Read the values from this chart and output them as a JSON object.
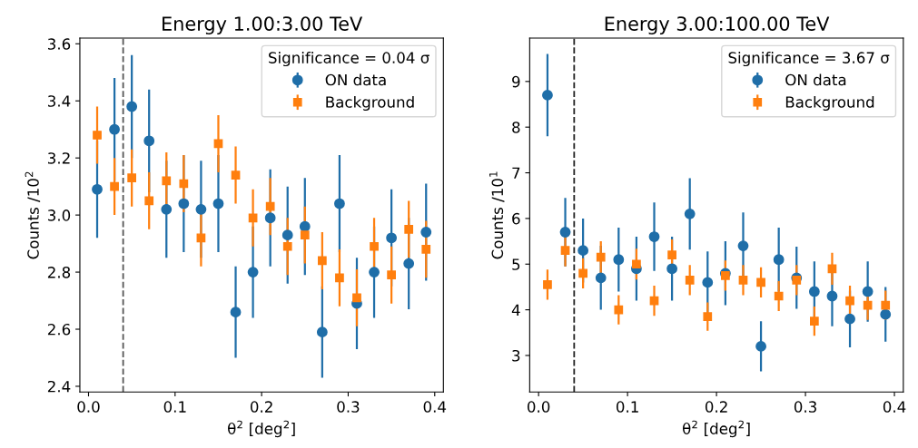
{
  "chart_data": [
    {
      "type": "scatter",
      "title": "Energy 1.00:3.00 TeV",
      "xlabel": "θ$^{2}$ [deg$^{2}$]",
      "ylabel": "Counts /10$^{2}$",
      "legend_title": "Significance = 0.04 σ",
      "legend": "top right",
      "grid": false,
      "x": [
        0.01,
        0.03,
        0.05,
        0.07,
        0.09,
        0.11,
        0.13,
        0.15,
        0.17,
        0.19,
        0.21,
        0.23,
        0.25,
        0.27,
        0.29,
        0.31,
        0.33,
        0.35,
        0.37,
        0.39
      ],
      "xlim": [
        -0.01,
        0.41
      ],
      "xticks": [
        {
          "value": 0,
          "label": "0.0"
        },
        0.1,
        0.2,
        0.3,
        0.4
      ],
      "ylim": [
        2.38,
        3.62
      ],
      "yticks": [
        2.4,
        2.6,
        2.8,
        {
          "value": 3,
          "label": "3.0"
        },
        3.2,
        3.4,
        3.6
      ],
      "ref_lines": [
        {
          "axis": "x",
          "value": 0.04,
          "color": "#555555",
          "line_style": "dashed"
        }
      ],
      "series": [
        {
          "name": "ON data",
          "color": "#1f6ea8",
          "marker": "circle",
          "values": [
            3.09,
            3.3,
            3.38,
            3.26,
            3.02,
            3.04,
            3.02,
            3.04,
            2.66,
            2.8,
            2.99,
            2.93,
            2.96,
            2.59,
            3.04,
            2.69,
            2.8,
            2.92,
            2.83,
            2.94
          ],
          "errors": [
            0.17,
            0.18,
            0.18,
            0.18,
            0.17,
            0.17,
            0.17,
            0.17,
            0.16,
            0.16,
            0.17,
            0.17,
            0.17,
            0.16,
            0.17,
            0.16,
            0.16,
            0.17,
            0.16,
            0.17
          ]
        },
        {
          "name": "Background",
          "color": "#ff7f0e",
          "marker": "square",
          "values": [
            3.28,
            3.1,
            3.13,
            3.05,
            3.12,
            3.11,
            2.92,
            3.25,
            3.14,
            2.99,
            3.03,
            2.89,
            2.93,
            2.84,
            2.78,
            2.71,
            2.89,
            2.79,
            2.95,
            2.88
          ],
          "errors": [
            0.1,
            0.1,
            0.1,
            0.1,
            0.1,
            0.1,
            0.1,
            0.1,
            0.1,
            0.1,
            0.1,
            0.1,
            0.1,
            0.1,
            0.1,
            0.1,
            0.1,
            0.1,
            0.1,
            0.1
          ]
        }
      ]
    },
    {
      "type": "scatter",
      "title": "Energy 3.00:100.00 TeV",
      "xlabel": "θ$^{2}$ [deg$^{2}$]",
      "ylabel": "Counts /10$^{1}$",
      "legend_title": "Significance = 3.67 σ",
      "legend": "top right",
      "grid": false,
      "x": [
        0.01,
        0.03,
        0.05,
        0.07,
        0.09,
        0.11,
        0.13,
        0.15,
        0.17,
        0.19,
        0.21,
        0.23,
        0.25,
        0.27,
        0.29,
        0.31,
        0.33,
        0.35,
        0.37,
        0.39
      ],
      "xlim": [
        -0.01,
        0.41
      ],
      "xticks": [
        {
          "value": 0,
          "label": "0.0"
        },
        0.1,
        0.2,
        0.3,
        0.4
      ],
      "ylim": [
        2.2,
        9.95
      ],
      "yticks": [
        3,
        4,
        5,
        6,
        7,
        8,
        9
      ],
      "ref_lines": [
        {
          "axis": "x",
          "value": 0.04,
          "color": "#222222",
          "line_style": "dashed"
        }
      ],
      "series": [
        {
          "name": "ON data",
          "color": "#1f6ea8",
          "marker": "circle",
          "values": [
            8.7,
            5.7,
            5.3,
            4.7,
            5.1,
            4.9,
            5.6,
            4.9,
            6.1,
            4.6,
            4.8,
            5.4,
            3.2,
            5.1,
            4.7,
            4.4,
            4.3,
            3.8,
            4.4,
            3.9
          ],
          "errors": [
            0.9,
            0.75,
            0.7,
            0.7,
            0.7,
            0.7,
            0.75,
            0.7,
            0.78,
            0.68,
            0.7,
            0.73,
            0.55,
            0.7,
            0.68,
            0.66,
            0.66,
            0.62,
            0.66,
            0.6
          ]
        },
        {
          "name": "Background",
          "color": "#ff7f0e",
          "marker": "square",
          "values": [
            4.55,
            5.3,
            4.8,
            5.15,
            4.0,
            5.0,
            4.2,
            5.2,
            4.65,
            3.85,
            4.75,
            4.65,
            4.6,
            4.3,
            4.65,
            3.75,
            4.9,
            4.2,
            4.1,
            4.1
          ],
          "errors": [
            0.33,
            0.35,
            0.33,
            0.35,
            0.32,
            0.34,
            0.33,
            0.34,
            0.33,
            0.31,
            0.33,
            0.33,
            0.33,
            0.33,
            0.33,
            0.32,
            0.35,
            0.33,
            0.32,
            0.32
          ]
        }
      ]
    }
  ]
}
